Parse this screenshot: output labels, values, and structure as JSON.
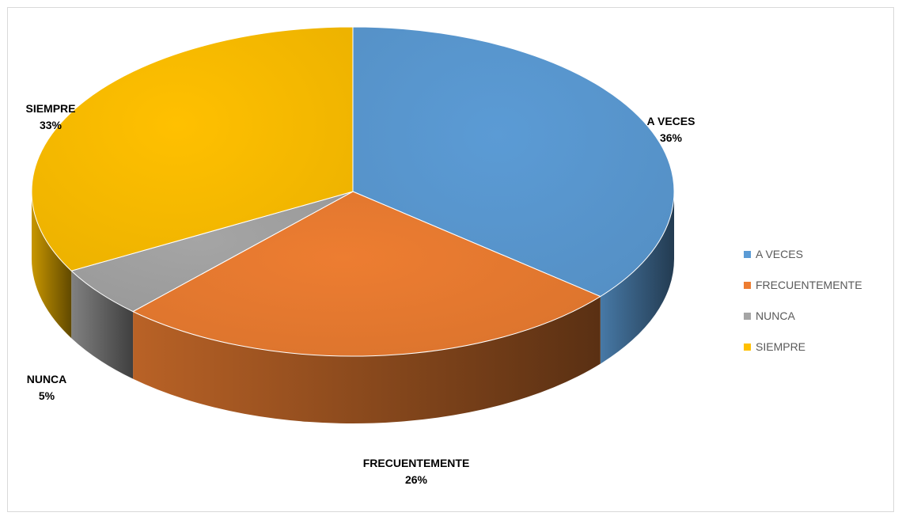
{
  "chart_data": {
    "type": "pie",
    "style": "3d",
    "categories": [
      "A VECES",
      "FRECUENTEMENTE",
      "NUNCA",
      "SIEMPRE"
    ],
    "values": [
      36,
      26,
      5,
      33
    ],
    "value_format": "percent",
    "colors": [
      "#5b9bd5",
      "#ed7d31",
      "#a5a5a5",
      "#ffc000"
    ],
    "data_labels": [
      {
        "category": "A VECES",
        "percent": "36%"
      },
      {
        "category": "FRECUENTEMENTE",
        "percent": "26%"
      },
      {
        "category": "NUNCA",
        "percent": "5%"
      },
      {
        "category": "SIEMPRE",
        "percent": "33%"
      }
    ],
    "legend": {
      "placement": "right",
      "entries": [
        "A VECES",
        "FRECUENTEMENTE",
        "NUNCA",
        "SIEMPRE"
      ]
    }
  }
}
